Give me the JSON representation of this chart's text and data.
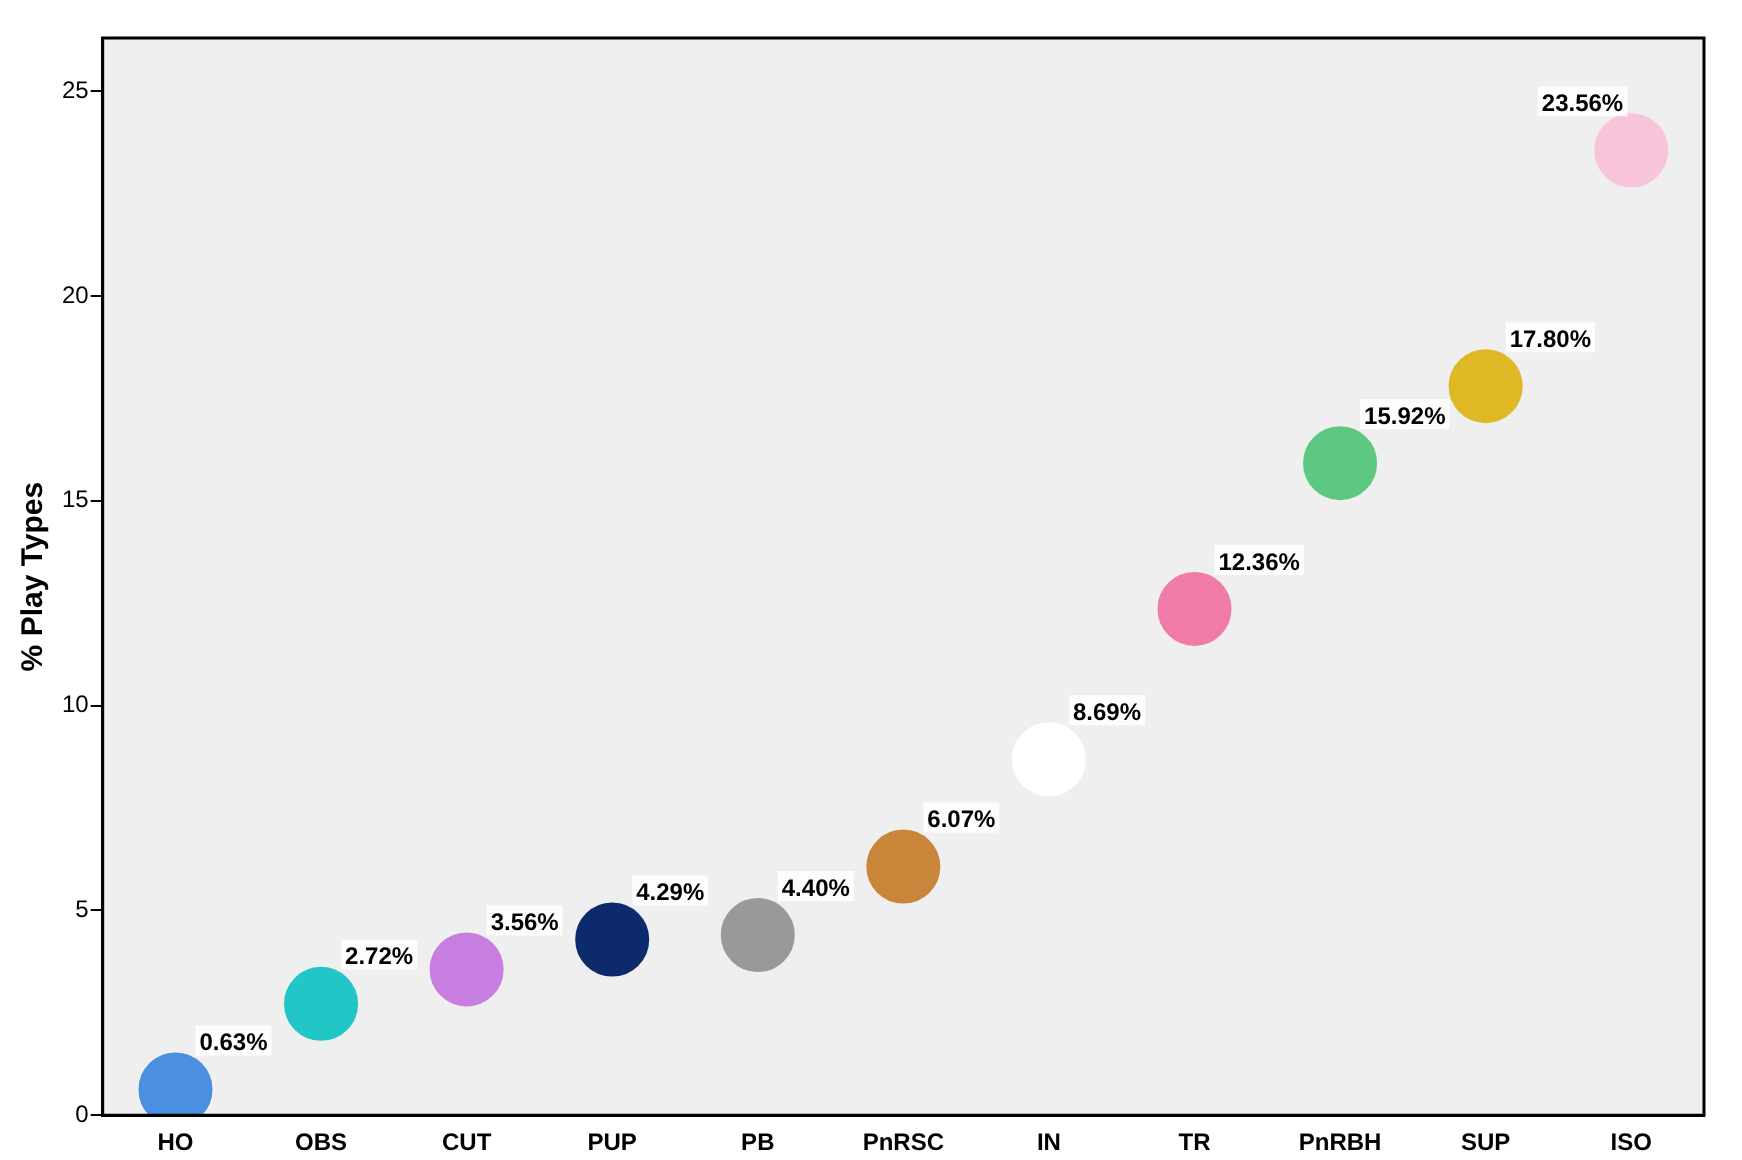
{
  "chart_data": {
    "type": "scatter",
    "ylabel": "% Play Types",
    "categories": [
      "HO",
      "OBS",
      "CUT",
      "PUP",
      "PB",
      "PnRSC",
      "IN",
      "TR",
      "PnRBH",
      "SUP",
      "ISO"
    ],
    "series": [
      {
        "values": [
          0.63,
          2.72,
          3.56,
          4.29,
          4.4,
          6.07,
          8.69,
          12.36,
          15.92,
          17.8,
          23.56
        ],
        "colors": [
          "#4a8fe0",
          "#22c6c6",
          "#c87de0",
          "#0c2a6c",
          "#999999",
          "#c98539",
          "#ffffff",
          "#f07aa8",
          "#5cc882",
          "#deb825",
          "#f8c4dc"
        ],
        "value_labels": [
          "0.63%",
          "2.72%",
          "3.56%",
          "4.29%",
          "4.40%",
          "6.07%",
          "8.69%",
          "12.36%",
          "15.92%",
          "17.80%",
          "23.56%"
        ]
      }
    ],
    "ylim": [
      0,
      26.3
    ],
    "yticks": [
      0,
      5,
      10,
      15,
      20,
      25
    ],
    "grid": false,
    "legend": false,
    "marker": "circle"
  }
}
